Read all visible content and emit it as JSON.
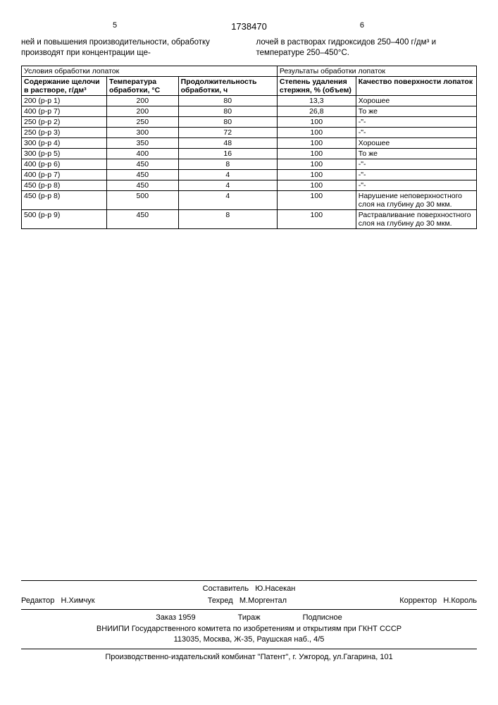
{
  "page": {
    "num_left": "5",
    "doc_number": "1738470",
    "num_right": "6"
  },
  "body": {
    "left_text": "ней и повышения производительности, обработку производят при концентрации ще-",
    "right_text": "лочей в растворах гидроксидов 250–400 г/дм³ и температуре 250–450°С."
  },
  "table": {
    "header_group_left": "Условия обработки лопаток",
    "header_group_right": "Результаты обработки лопаток",
    "columns": {
      "c1": "Содержание щелочи в растворе, г/дм³",
      "c2": "Температура обработки, °С",
      "c3": "Продолжительность обработки, ч",
      "c4": "Степень удаления стержня, % (объем)",
      "c5": "Качество поверхности лопаток"
    },
    "rows": [
      {
        "c1": "200 (р-р 1)",
        "c2": "200",
        "c3": "80",
        "c4": "13,3",
        "c5": "Хорошее"
      },
      {
        "c1": "400 (р-р 7)",
        "c2": "200",
        "c3": "80",
        "c4": "26,8",
        "c5": "То же"
      },
      {
        "c1": "250 (р-р 2)",
        "c2": "250",
        "c3": "80",
        "c4": "100",
        "c5": "-\"-"
      },
      {
        "c1": "250 (р-р 3)",
        "c2": "300",
        "c3": "72",
        "c4": "100",
        "c5": "-\"-"
      },
      {
        "c1": "300 (р-р 4)",
        "c2": "350",
        "c3": "48",
        "c4": "100",
        "c5": "Хорошее"
      },
      {
        "c1": "300 (р-р 5)",
        "c2": "400",
        "c3": "16",
        "c4": "100",
        "c5": "То же"
      },
      {
        "c1": "400 (р-р 6)",
        "c2": "450",
        "c3": "8",
        "c4": "100",
        "c5": "-\"-"
      },
      {
        "c1": "400 (р-р 7)",
        "c2": "450",
        "c3": "4",
        "c4": "100",
        "c5": "-\"-"
      },
      {
        "c1": "450 (р-р 8)",
        "c2": "450",
        "c3": "4",
        "c4": "100",
        "c5": "-\"-"
      },
      {
        "c1": "450 (р-р 8)",
        "c2": "500",
        "c3": "4",
        "c4": "100",
        "c5": "Нарушение неповерхностного слоя на глубину до 30 мкм."
      },
      {
        "c1": "500 (р-р 9)",
        "c2": "450",
        "c3": "8",
        "c4": "100",
        "c5": "Растравливание поверхностного слоя на глубину до 30 мкм."
      }
    ]
  },
  "footer": {
    "editor_label": "Редактор",
    "editor_name": "Н.Химчук",
    "compiler_label": "Составитель",
    "compiler_name": "Ю.Насекан",
    "techred_label": "Техред",
    "techred_name": "М.Моргентал",
    "corrector_label": "Корректор",
    "corrector_name": "Н.Король",
    "order": "Заказ 1959",
    "tirazh": "Тираж",
    "podpisnoe": "Подписное",
    "org1": "ВНИИПИ Государственного комитета по изобретениям и открытиям при ГКНТ СССР",
    "org2": "113035, Москва, Ж-35, Раушская наб., 4/5",
    "org3": "Производственно-издательский комбинат \"Патент\", г. Ужгород, ул.Гагарина, 101"
  }
}
